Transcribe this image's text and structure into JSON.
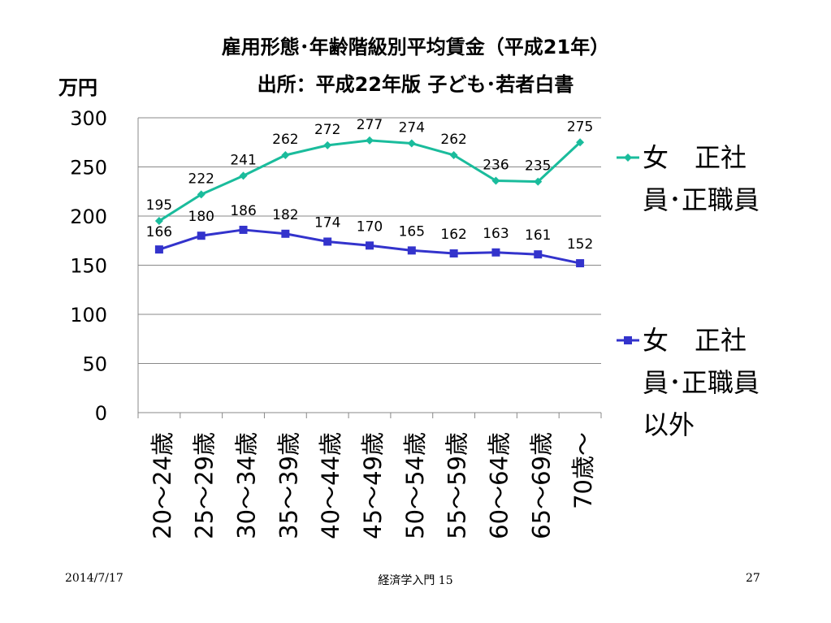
{
  "slide": {
    "title_line1": "雇用形態･年齢階級別平均賃金（平成21年）",
    "title_line2": "出所：平成22年版 子ども･若者白書",
    "footer_date": "2014/7/17",
    "footer_course": "経済学入門 15",
    "footer_page": "27"
  },
  "chart_data": {
    "type": "line",
    "unit_label": "万円",
    "categories": [
      "20～24歳",
      "25～29歳",
      "30～34歳",
      "35～39歳",
      "40～44歳",
      "45～49歳",
      "50～54歳",
      "55～59歳",
      "60～64歳",
      "65～69歳",
      "70歳～"
    ],
    "ylim": [
      0,
      300
    ],
    "yticks": [
      "0",
      "50",
      "100",
      "150",
      "200",
      "250",
      "300"
    ],
    "grid": true,
    "legend_position": "right",
    "series": [
      {
        "name": "女　正社員･正職員",
        "legend_text": "女　正社\n員･正職員",
        "color": "#1ABC9C",
        "marker": "diamond",
        "values": [
          195,
          222,
          241,
          262,
          272,
          277,
          274,
          262,
          236,
          235,
          275
        ]
      },
      {
        "name": "女　正社員･正職員以外",
        "legend_text": "女　正社\n員･正職員\n以外",
        "color": "#3333CC",
        "marker": "square",
        "values": [
          166,
          180,
          186,
          182,
          174,
          170,
          165,
          162,
          163,
          161,
          152
        ]
      }
    ]
  }
}
